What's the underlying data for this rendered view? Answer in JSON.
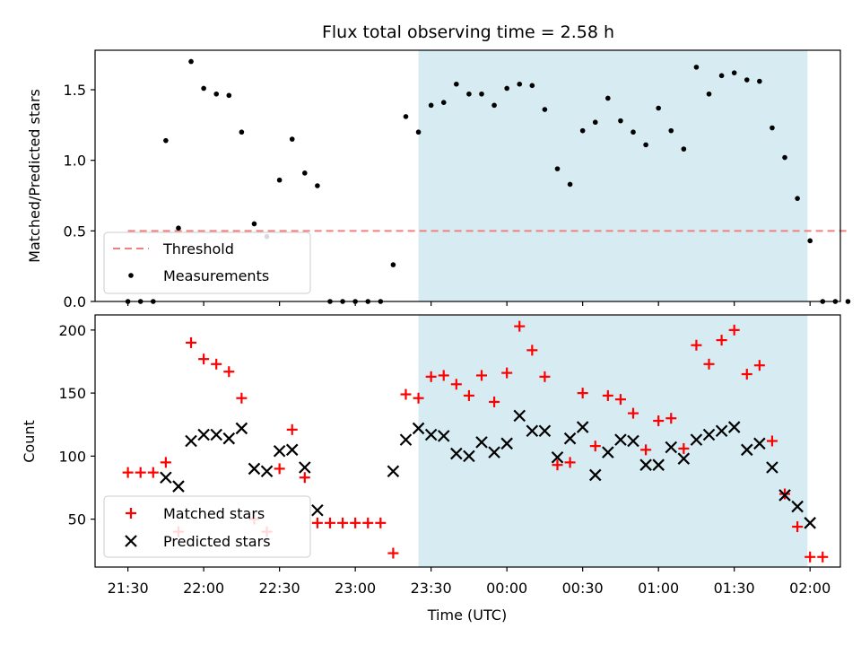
{
  "chart_data": [
    {
      "type": "scatter",
      "title": "Flux total observing time = 2.58 h",
      "xlabel": "",
      "ylabel": "Matched/Predicted stars",
      "ylim": [
        0,
        1.78
      ],
      "yticks": [
        "0.0",
        "0.5",
        "1.0",
        "1.5"
      ],
      "ytick_values": [
        0,
        0.5,
        1.0,
        1.5
      ],
      "threshold": 0.5,
      "legend_position": "lower-left",
      "legend": [
        "Threshold",
        "Measurements"
      ],
      "colors": {
        "threshold": "#f08080",
        "measurements": "#000000",
        "shade": "#add8e6"
      },
      "x_minutes_after_2130": [
        0,
        5,
        10,
        15,
        20,
        25,
        30,
        35,
        40,
        45,
        50,
        55,
        60,
        65,
        70,
        75,
        80,
        85,
        90,
        95,
        100,
        105,
        110,
        115,
        120,
        125,
        130,
        135,
        140,
        145,
        150,
        155,
        160,
        165,
        170,
        175,
        180,
        185,
        190,
        195,
        200,
        205,
        210,
        215,
        220,
        225,
        230,
        235,
        240,
        245,
        250,
        255,
        260,
        265,
        270,
        275,
        280,
        285
      ],
      "values": [
        0,
        0,
        0,
        1.14,
        0.52,
        1.7,
        1.51,
        1.47,
        1.46,
        1.2,
        0.55,
        0.46,
        0.86,
        1.15,
        0.91,
        0.82,
        0,
        0,
        0,
        0,
        0,
        0.26,
        1.31,
        1.2,
        1.39,
        1.41,
        1.54,
        1.47,
        1.47,
        1.39,
        1.51,
        1.54,
        1.53,
        1.36,
        0.94,
        0.83,
        1.21,
        1.27,
        1.44,
        1.28,
        1.2,
        1.11,
        1.37,
        1.21,
        1.08,
        1.66,
        1.47,
        1.6,
        1.62,
        1.57,
        1.56,
        1.23,
        1.02,
        0.73,
        0.43,
        0,
        0,
        0
      ]
    },
    {
      "type": "scatter",
      "xlabel": "Time (UTC)",
      "ylabel": "Count",
      "ylim": [
        12,
        212
      ],
      "yticks": [
        "50",
        "100",
        "150",
        "200"
      ],
      "ytick_values": [
        50,
        100,
        150,
        200
      ],
      "xticks": [
        "21:30",
        "22:00",
        "22:30",
        "23:00",
        "23:30",
        "00:00",
        "00:30",
        "01:00",
        "01:30",
        "02:00"
      ],
      "legend_position": "lower-left",
      "legend": [
        "Matched stars",
        "Predicted stars"
      ],
      "colors": {
        "matched": "#ff0000",
        "predicted": "#000000",
        "shade": "#add8e6"
      },
      "shaded_span_minutes_after_2130": [
        115,
        269
      ],
      "x_range_minutes_after_2130": [
        -13,
        282
      ],
      "matched": {
        "x": [
          0,
          5,
          10,
          15,
          20,
          25,
          30,
          35,
          40,
          45,
          50,
          55,
          60,
          65,
          70,
          75,
          80,
          85,
          90,
          95,
          100,
          105,
          110,
          115,
          120,
          125,
          130,
          135,
          140,
          145,
          150,
          155,
          160,
          165,
          170,
          175,
          180,
          185,
          190,
          195,
          200,
          205,
          210,
          215,
          220,
          225,
          230,
          235,
          240,
          245,
          250,
          255,
          260,
          265,
          270,
          275
        ],
        "y": [
          87,
          87,
          87,
          95,
          40,
          190,
          177,
          173,
          167,
          146,
          50,
          40,
          90,
          121,
          83,
          47,
          47,
          47,
          47,
          47,
          47,
          23,
          149,
          146,
          163,
          164,
          157,
          148,
          164,
          143,
          166,
          203,
          184,
          163,
          93,
          95,
          150,
          108,
          148,
          145,
          134,
          105,
          128,
          130,
          106,
          188,
          173,
          192,
          200,
          165,
          172,
          112,
          70,
          44,
          20,
          20
        ]
      },
      "predicted": {
        "x": [
          15,
          20,
          25,
          30,
          35,
          40,
          45,
          50,
          55,
          60,
          65,
          70,
          75,
          105,
          110,
          115,
          120,
          125,
          130,
          135,
          140,
          145,
          150,
          155,
          160,
          165,
          170,
          175,
          180,
          185,
          190,
          195,
          200,
          205,
          210,
          215,
          220,
          225,
          230,
          235,
          240,
          245,
          250,
          255,
          260,
          265,
          270
        ],
        "y": [
          83,
          76,
          112,
          117,
          117,
          114,
          122,
          90,
          88,
          104,
          105,
          91,
          57,
          88,
          113,
          122,
          117,
          116,
          102,
          100,
          111,
          103,
          110,
          132,
          120,
          120,
          99,
          114,
          123,
          85,
          103,
          113,
          112,
          93,
          93,
          107,
          98,
          113,
          117,
          120,
          123,
          105,
          110,
          91,
          69,
          60,
          47
        ]
      }
    }
  ]
}
